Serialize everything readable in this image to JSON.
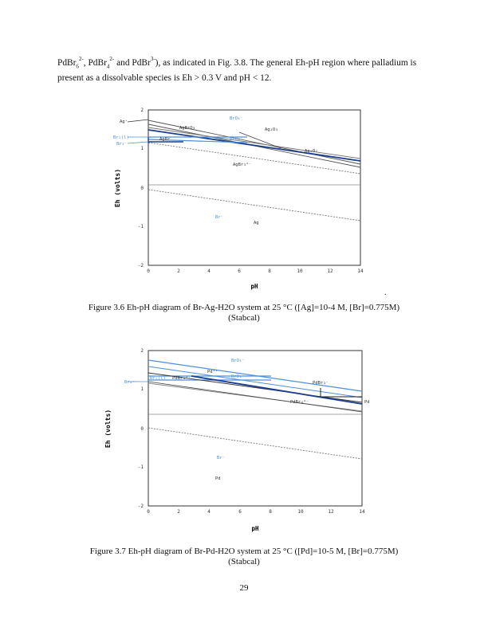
{
  "paragraph": {
    "s1": "PdBr",
    "s1_sub": "6",
    "s1_sup": "2-",
    "s2": ", PdBr",
    "s2_sub": "4",
    "s2_sup": "2-",
    "s3": " and PdBr",
    "s3_sup": "3-",
    "s4": "), as indicated in Fig. 3.8. The general Eh-pH region where palladium is present as a dissolvable species is Eh > 0.3 V and pH < 12."
  },
  "stray_mark": ".",
  "figures": [
    {
      "id": "fig36",
      "caption_line1": "Figure 3.6 Eh-pH diagram of Br-Ag-H2O system at 25 °C ([Ag]=10-4 M, [Br]=0.775M)",
      "caption_line2": "(Stabcal)",
      "xlabel": "pH",
      "ylabel": "Eh (volts)",
      "x_ticks": [
        "0",
        "2",
        "4",
        "6",
        "8",
        "10",
        "12",
        "14"
      ],
      "y_ticks": [
        "2",
        "1",
        "0",
        "-1",
        "-2"
      ],
      "species": {
        "ag_plus": "Ag⁺",
        "br2l": "Br₂(l)",
        "br3": "Br₃⁻",
        "agbro3": "AgBrO₃",
        "brO4": "BrO₄⁻",
        "ag2o3": "Ag₂O₃",
        "brO3": "BrO₃⁻",
        "agbr": "AgBr",
        "ag2o2": "Ag₂O₂",
        "agbr3": "AgBr₃²⁻",
        "br_minus": "Br⁻",
        "ag": "Ag"
      },
      "colors": {
        "blue": "#4a8fe0",
        "dark_blue": "#1a3d8f",
        "gray": "#888888"
      }
    },
    {
      "id": "fig37",
      "caption_line1": "Figure 3.7 Eh-pH diagram of Br-Pd-H2O system at 25 °C ([Pd]=10-5 M, [Br]=0.775M)",
      "caption_line2": "(Stabcal)",
      "xlabel": "pH",
      "ylabel": "Eh (volts)",
      "x_ticks": [
        "0",
        "2",
        "4",
        "6",
        "8",
        "10",
        "12",
        "14"
      ],
      "y_ticks": [
        "2",
        "1",
        "0",
        "-1",
        "-2"
      ],
      "species": {
        "brO4": "BrO₄⁻",
        "pd2": "Pd²⁺",
        "br2l": "Br₂(l)",
        "pdbr4_top": "PdBr₄²⁻",
        "brO3": "BrO₃⁻",
        "br3": "Br₃⁻",
        "pdbr3": "PdBr₃⁻",
        "pdbr4": "PdBr₄²⁻",
        "pd_right": "Pd",
        "br_minus": "Br⁻",
        "pd": "Pd"
      }
    }
  ],
  "page_number": "29"
}
